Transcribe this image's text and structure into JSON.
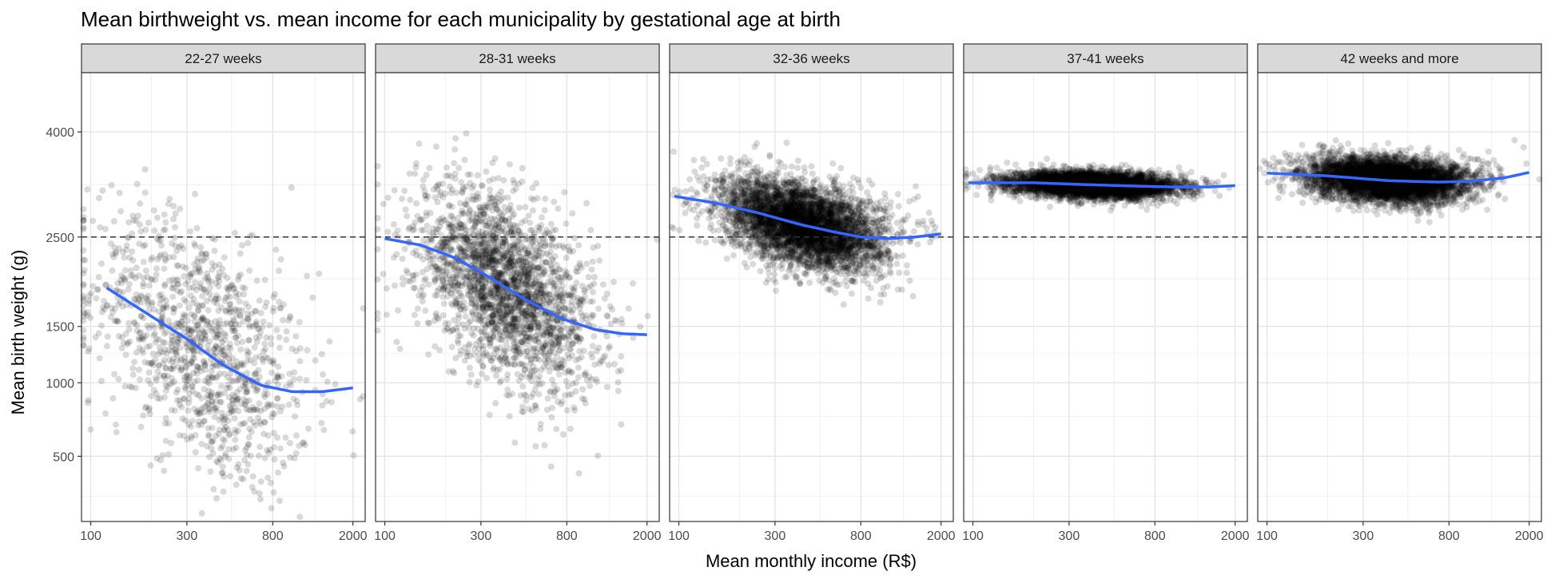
{
  "chart_data": {
    "type": "scatter",
    "title": "Mean birthweight vs. mean income for each municipality by gestational age at birth",
    "xlabel": "Mean monthly income (R$)",
    "ylabel": "Mean birth weight (g)",
    "x_scale": "log",
    "y_scale": "sqrt",
    "xlim": [
      90,
      2300
    ],
    "ylim": [
      200,
      5000
    ],
    "x_ticks": [
      100,
      300,
      800,
      2000
    ],
    "x_tick_labels": [
      "100",
      "300",
      "800",
      "2000"
    ],
    "y_ticks": [
      500,
      1000,
      1500,
      2500,
      4000
    ],
    "y_tick_labels": [
      "500",
      "1000",
      "1500",
      "2500",
      "4000"
    ],
    "reference_line": {
      "y": 2500,
      "style": "dashed"
    },
    "point_color": "#000000",
    "point_alpha": 0.15,
    "smooth_color": "#3366FF",
    "panels": [
      {
        "label": "22-27 weeks",
        "n_points": 1200,
        "cloud": {
          "x_log_mean": 2.55,
          "x_log_sd": 0.27,
          "y_sqrt_sd": 7.5
        },
        "smooth": {
          "x": [
            120,
            200,
            300,
            450,
            700,
            1000,
            1400,
            2000
          ],
          "y": [
            1900,
            1600,
            1380,
            1150,
            980,
            930,
            930,
            960
          ]
        }
      },
      {
        "label": "28-31 weeks",
        "n_points": 2400,
        "cloud": {
          "x_log_mean": 2.6,
          "x_log_sd": 0.22,
          "y_sqrt_sd": 5.5
        },
        "smooth": {
          "x": [
            100,
            150,
            220,
            330,
            500,
            750,
            1100,
            1500,
            2000
          ],
          "y": [
            2480,
            2400,
            2250,
            2020,
            1770,
            1580,
            1470,
            1430,
            1420
          ]
        }
      },
      {
        "label": "32-36 weeks",
        "n_points": 4500,
        "cloud": {
          "x_log_mean": 2.62,
          "x_log_sd": 0.2,
          "y_sqrt_sd": 2.6
        },
        "smooth": {
          "x": [
            95,
            150,
            250,
            400,
            600,
            800,
            1100,
            1500,
            2000
          ],
          "y": [
            3040,
            2950,
            2810,
            2660,
            2560,
            2500,
            2480,
            2500,
            2540
          ]
        }
      },
      {
        "label": "37-41 weeks",
        "n_points": 5000,
        "cloud": {
          "x_log_mean": 2.6,
          "x_log_sd": 0.2,
          "y_sqrt_sd": 0.8
        },
        "smooth": {
          "x": [
            95,
            200,
            400,
            700,
            1000,
            1500,
            2000
          ],
          "y": [
            3230,
            3230,
            3200,
            3180,
            3170,
            3170,
            3190
          ]
        }
      },
      {
        "label": "42 weeks and more",
        "n_points": 5000,
        "cloud": {
          "x_log_mean": 2.6,
          "x_log_sd": 0.2,
          "y_sqrt_sd": 1.4
        },
        "smooth": {
          "x": [
            100,
            200,
            400,
            700,
            1000,
            1500,
            2000
          ],
          "y": [
            3370,
            3330,
            3260,
            3240,
            3250,
            3300,
            3380
          ]
        }
      }
    ]
  }
}
